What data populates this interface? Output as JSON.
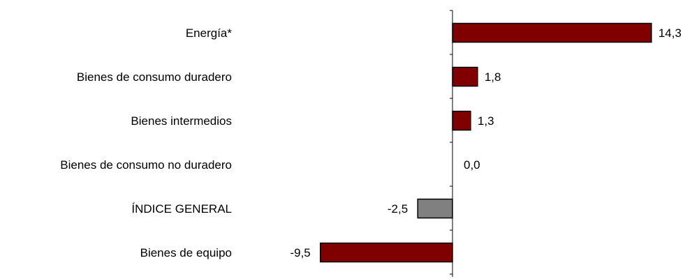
{
  "chart_data": {
    "type": "bar",
    "orientation": "horizontal",
    "categories": [
      "Energía*",
      "Bienes de consumo duradero",
      "Bienes intermedios",
      "Bienes de consumo no duradero",
      "ÍNDICE GENERAL",
      "Bienes de equipo"
    ],
    "values": [
      14.3,
      1.8,
      1.3,
      0.0,
      -2.5,
      -9.5
    ],
    "value_labels": [
      "14,3",
      "1,8",
      "1,3",
      "0,0",
      "-2,5",
      "-9,5"
    ],
    "bar_colors": [
      "#800000",
      "#800000",
      "#800000",
      "#800000",
      "#808080",
      "#800000"
    ],
    "xlim": [
      -10,
      15
    ],
    "grid": false,
    "legend": "none",
    "title": "",
    "xlabel": "",
    "ylabel": ""
  }
}
